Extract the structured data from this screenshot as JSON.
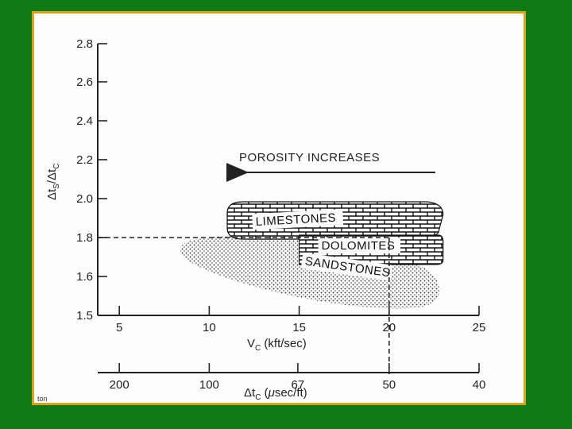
{
  "chart_data": {
    "type": "scatter",
    "title": "",
    "xlabel": "V_C (kft/sec)",
    "xlabel_parts": {
      "main": "V",
      "sub": "C",
      "rest": " (kft/sec)"
    },
    "x2label": "Δt_C (μsec/ft)",
    "x2label_parts": {
      "main": "Δt",
      "sub": "C",
      "rest": " (",
      "mu": "μ",
      "rest2": "sec/ft)"
    },
    "ylabel": "Δt_S/Δt_C",
    "ylabel_parts": {
      "a": "Δt",
      "a_sub": "S",
      "slash": "/Δt",
      "b_sub": "C"
    },
    "xlim": [
      3.8,
      25
    ],
    "ylim": [
      1.5,
      2.8
    ],
    "x_ticks": [
      5,
      10,
      15,
      20,
      25
    ],
    "x_tick_labels": [
      "5",
      "10",
      "15",
      "20",
      "25"
    ],
    "y_ticks": [
      1.5,
      1.6,
      1.8,
      2.0,
      2.2,
      2.4,
      2.6,
      2.8
    ],
    "y_tick_labels": [
      "1.5",
      "1.6",
      "1.8",
      "2.0",
      "2.2",
      "2.4",
      "2.6",
      "2.8"
    ],
    "x2_ticks": [
      200,
      100,
      67,
      50,
      40
    ],
    "x2_tick_labels": [
      "200",
      "100",
      "67",
      "50",
      "40"
    ],
    "regions": [
      {
        "name": "LIMESTONES",
        "pattern": "brick",
        "x_range": [
          11,
          23
        ],
        "y_range": [
          1.8,
          2.0
        ]
      },
      {
        "name": "DOLOMITES",
        "pattern": "brick",
        "x_range": [
          15,
          23
        ],
        "y_range": [
          1.67,
          1.8
        ]
      },
      {
        "name": "SANDSTONES",
        "pattern": "dotted",
        "x_range": [
          8.5,
          23
        ],
        "y_range": [
          1.5,
          1.8
        ]
      }
    ],
    "reference_lines": [
      {
        "type": "horizontal",
        "y": 1.8,
        "x_range": [
          3.8,
          20
        ]
      },
      {
        "type": "vertical",
        "x": 20,
        "y_range": [
          1.5,
          1.8
        ]
      }
    ],
    "annotations": [
      {
        "text": "POROSITY INCREASES",
        "arrow_direction": "left"
      }
    ]
  },
  "credit": "ton"
}
